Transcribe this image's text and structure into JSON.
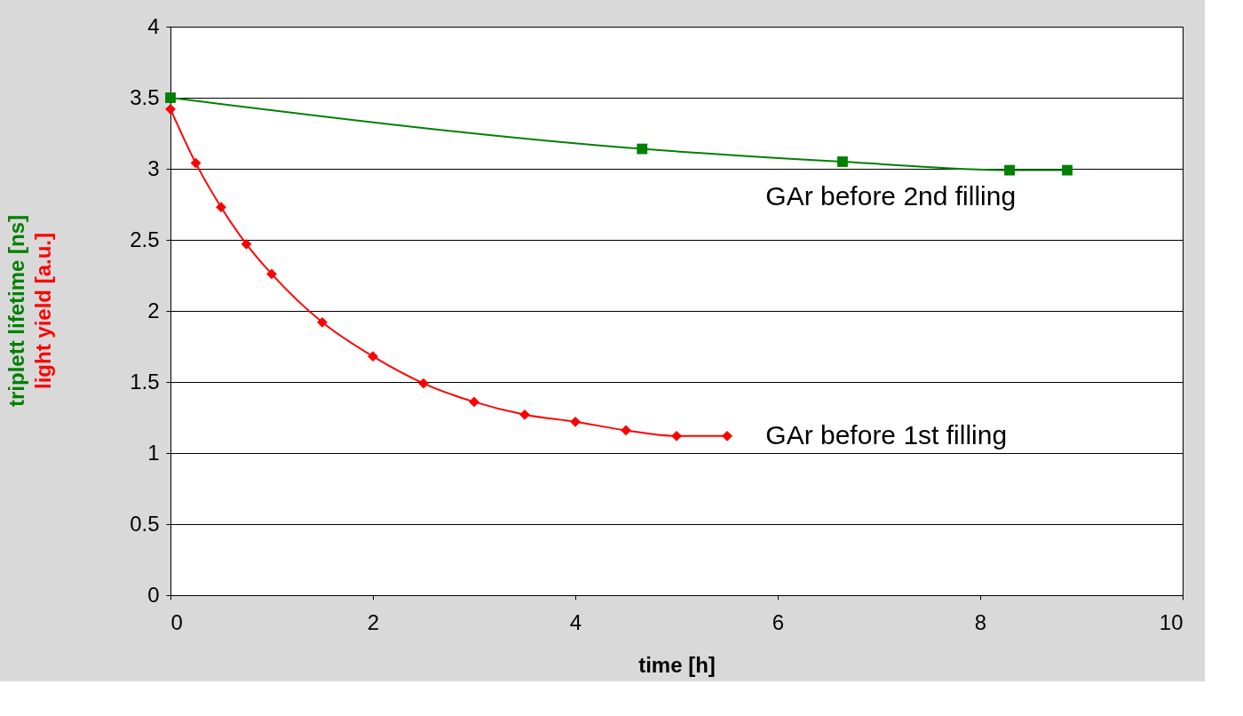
{
  "chart_data": {
    "type": "line",
    "xlabel": "time [h]",
    "ylabel": "triplett lifetime [ns]",
    "y2label": "light yield [a.u.]",
    "xlim": [
      0,
      10
    ],
    "xticks": [
      0,
      2,
      4,
      6,
      8,
      10
    ],
    "ylim": [
      0,
      4
    ],
    "yticks": [
      0,
      0.5,
      1,
      1.5,
      2,
      2.5,
      3,
      3.5,
      4
    ],
    "grid": "y",
    "series": [
      {
        "name": "GAr before 2nd filling",
        "color": "#008000",
        "marker": "square",
        "x": [
          0,
          4.66,
          6.64,
          8.29,
          8.86
        ],
        "values": [
          3.5,
          3.14,
          3.05,
          2.99,
          2.99
        ]
      },
      {
        "name": "GAr before 1st filling",
        "color": "#ff0000",
        "marker": "diamond",
        "x": [
          0,
          0.25,
          0.5,
          0.75,
          1,
          1.5,
          2,
          2.5,
          3,
          3.5,
          4,
          4.5,
          5,
          5.5
        ],
        "values": [
          3.42,
          3.04,
          2.73,
          2.47,
          2.26,
          1.92,
          1.68,
          1.49,
          1.36,
          1.27,
          1.22,
          1.16,
          1.12,
          1.12
        ]
      }
    ]
  }
}
